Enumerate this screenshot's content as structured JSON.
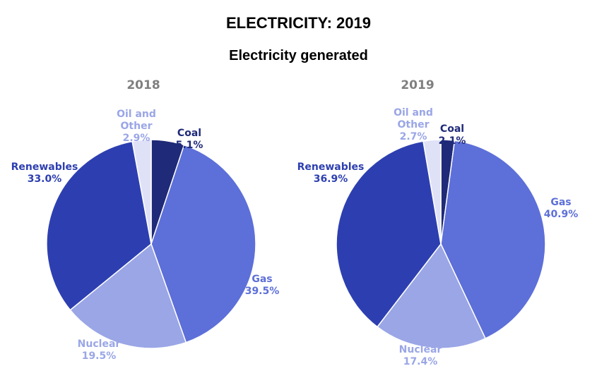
{
  "title": "ELECTRICITY: 2019",
  "subtitle": "Electricity generated",
  "colors": {
    "coal": "#1f2a78",
    "gas": "#5d6fd8",
    "nuclear": "#9aa6e6",
    "renewables": "#2d3fb0",
    "oil_other": "#dfe2f7"
  },
  "label_colors": {
    "coal": "#1f2a78",
    "gas": "#5d6fd8",
    "nuclear": "#9aa6e6",
    "renewables": "#2d3fb0",
    "oil_other": "#9aa6e6"
  },
  "chart_data": [
    {
      "type": "pie",
      "title": "2018",
      "slices": [
        {
          "key": "coal",
          "label": "Coal",
          "value": 5.1,
          "value_label": "5.1%"
        },
        {
          "key": "gas",
          "label": "Gas",
          "value": 39.5,
          "value_label": "39.5%"
        },
        {
          "key": "nuclear",
          "label": "Nuclear",
          "value": 19.5,
          "value_label": "19.5%"
        },
        {
          "key": "renewables",
          "label": "Renewables",
          "value": 33.0,
          "value_label": "33.0%"
        },
        {
          "key": "oil_other",
          "label": "Oil and Other",
          "value": 2.9,
          "value_label": "2.9%"
        }
      ]
    },
    {
      "type": "pie",
      "title": "2019",
      "slices": [
        {
          "key": "coal",
          "label": "Coal",
          "value": 2.1,
          "value_label": "2.1%"
        },
        {
          "key": "gas",
          "label": "Gas",
          "value": 40.9,
          "value_label": "40.9%"
        },
        {
          "key": "nuclear",
          "label": "Nuclear",
          "value": 17.4,
          "value_label": "17.4%"
        },
        {
          "key": "renewables",
          "label": "Renewables",
          "value": 36.9,
          "value_label": "36.9%"
        },
        {
          "key": "oil_other",
          "label": "Oil and Other",
          "value": 2.7,
          "value_label": "2.7%"
        }
      ]
    }
  ]
}
